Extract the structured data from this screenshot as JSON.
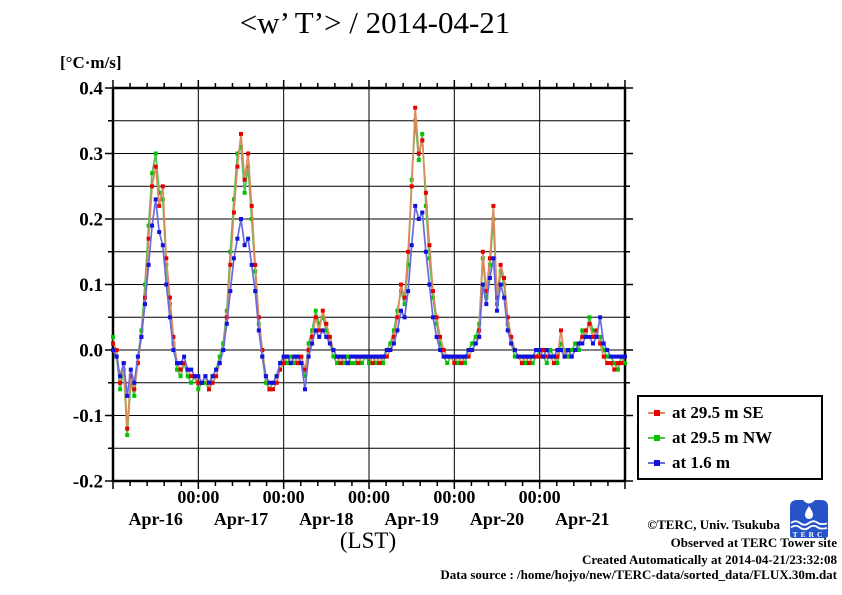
{
  "title": "<w’ T’> / 2014-04-21",
  "y_axis": {
    "unit_label": "[°C·m/s]",
    "ticks": [
      {
        "value": 0.4,
        "label": "0.4"
      },
      {
        "value": 0.3,
        "label": "0.3"
      },
      {
        "value": 0.2,
        "label": "0.2"
      },
      {
        "value": 0.1,
        "label": "0.1"
      },
      {
        "value": 0.0,
        "label": "0.0"
      },
      {
        "value": -0.1,
        "label": "-0.1"
      },
      {
        "value": -0.2,
        "label": "-0.2"
      }
    ]
  },
  "x_axis": {
    "midnight_label": "00:00",
    "day_labels": [
      "Apr-16",
      "Apr-17",
      "Apr-18",
      "Apr-19",
      "Apr-20",
      "Apr-21"
    ],
    "axis_label": "(LST)"
  },
  "legend": {
    "items": [
      {
        "label": "at 29.5 m SE",
        "marker_color": "#e60000",
        "line_color": "#dd8a5e"
      },
      {
        "label": "at 29.5 m NW",
        "marker_color": "#00c400",
        "line_color": "#52c052"
      },
      {
        "label": "at 1.6 m",
        "marker_color": "#1212e0",
        "line_color": "#6a6ade"
      }
    ]
  },
  "footer": {
    "lines": [
      "©TERC, Univ. Tsukuba",
      "Observed at TERC Tower site",
      "Created Automatically at 2014-04-21/23:32:08",
      "Data source : /home/hojyo/new/TERC-data/sorted_data/FLUX.30m.dat"
    ],
    "logo_text": "TERC",
    "logo_color": "#2653c8"
  },
  "chart_data": {
    "type": "line",
    "title": "<w’ T’> / 2014-04-21",
    "xlabel": "(LST)",
    "ylabel": "[°C·m/s]",
    "ylim": [
      -0.2,
      0.4
    ],
    "y_grid_step": 0.05,
    "y_major_step": 0.1,
    "x_unit": "hours from Apr-16 00:00 LST",
    "sample_interval_hours": 1,
    "hours_per_day": 24,
    "days": [
      "Apr-16",
      "Apr-17",
      "Apr-18",
      "Apr-19",
      "Apr-20",
      "Apr-21"
    ],
    "x_minor_tick_hours": 4.8,
    "grid": "on",
    "legend_position": "outside-right-bottom",
    "series": [
      {
        "name": "at 29.5 m SE",
        "marker_color": "#e60000",
        "line_color": "#dd8a5e",
        "values": [
          0.01,
          0.0,
          -0.05,
          -0.02,
          -0.12,
          -0.04,
          -0.06,
          -0.02,
          0.02,
          0.08,
          0.17,
          0.25,
          0.28,
          0.22,
          0.25,
          0.14,
          0.08,
          0.02,
          -0.02,
          -0.03,
          -0.02,
          -0.03,
          -0.04,
          -0.04,
          -0.05,
          -0.05,
          -0.04,
          -0.06,
          -0.05,
          -0.04,
          -0.02,
          0.0,
          0.05,
          0.13,
          0.21,
          0.28,
          0.33,
          0.26,
          0.3,
          0.22,
          0.13,
          0.05,
          0.0,
          -0.04,
          -0.06,
          -0.06,
          -0.05,
          -0.03,
          -0.02,
          -0.01,
          -0.02,
          -0.01,
          -0.02,
          -0.01,
          -0.03,
          0.0,
          0.02,
          0.05,
          0.03,
          0.06,
          0.04,
          0.02,
          0.0,
          -0.01,
          -0.02,
          -0.01,
          -0.02,
          -0.01,
          -0.01,
          -0.02,
          -0.01,
          -0.01,
          -0.01,
          -0.02,
          -0.01,
          -0.02,
          -0.01,
          -0.01,
          0.0,
          0.02,
          0.05,
          0.1,
          0.08,
          0.15,
          0.25,
          0.37,
          0.3,
          0.32,
          0.24,
          0.16,
          0.09,
          0.05,
          0.02,
          0.0,
          -0.01,
          -0.01,
          -0.02,
          -0.01,
          -0.02,
          -0.01,
          -0.01,
          0.0,
          0.01,
          0.03,
          0.15,
          0.09,
          0.14,
          0.22,
          0.08,
          0.13,
          0.11,
          0.05,
          0.02,
          0.0,
          -0.01,
          -0.02,
          -0.01,
          -0.02,
          -0.01,
          -0.01,
          -0.01,
          0.0,
          -0.01,
          -0.01,
          -0.02,
          -0.01,
          0.03,
          -0.01,
          0.0,
          -0.01,
          0.0,
          0.01,
          0.02,
          0.03,
          0.04,
          0.02,
          0.03,
          0.01,
          -0.01,
          -0.02,
          -0.02,
          -0.03,
          -0.02,
          -0.02,
          -0.01
        ]
      },
      {
        "name": "at 29.5 m NW",
        "marker_color": "#00c400",
        "line_color": "#52c052",
        "values": [
          0.02,
          -0.01,
          -0.06,
          -0.03,
          -0.13,
          -0.05,
          -0.07,
          -0.01,
          0.03,
          0.1,
          0.19,
          0.27,
          0.3,
          0.24,
          0.23,
          0.13,
          0.07,
          0.01,
          -0.03,
          -0.04,
          -0.02,
          -0.04,
          -0.05,
          -0.04,
          -0.06,
          -0.05,
          -0.05,
          -0.06,
          -0.04,
          -0.03,
          -0.01,
          0.01,
          0.06,
          0.15,
          0.23,
          0.3,
          0.31,
          0.24,
          0.28,
          0.2,
          0.12,
          0.04,
          -0.01,
          -0.05,
          -0.06,
          -0.05,
          -0.04,
          -0.02,
          -0.01,
          -0.02,
          -0.01,
          -0.02,
          -0.01,
          -0.02,
          -0.04,
          0.01,
          0.03,
          0.06,
          0.04,
          0.05,
          0.03,
          0.01,
          -0.01,
          -0.02,
          -0.01,
          -0.02,
          -0.01,
          -0.02,
          -0.02,
          -0.01,
          -0.02,
          -0.01,
          -0.02,
          -0.01,
          -0.02,
          -0.01,
          -0.02,
          0.0,
          0.01,
          0.03,
          0.06,
          0.09,
          0.07,
          0.13,
          0.26,
          0.35,
          0.29,
          0.33,
          0.22,
          0.14,
          0.08,
          0.04,
          0.01,
          -0.01,
          -0.02,
          -0.01,
          -0.01,
          -0.02,
          -0.01,
          -0.02,
          0.0,
          0.01,
          0.02,
          0.04,
          0.14,
          0.08,
          0.13,
          0.2,
          0.07,
          0.12,
          0.1,
          0.04,
          0.01,
          -0.01,
          -0.01,
          -0.01,
          -0.02,
          -0.01,
          -0.02,
          -0.01,
          0.0,
          -0.01,
          -0.02,
          0.0,
          -0.01,
          -0.02,
          0.01,
          0.0,
          -0.01,
          0.0,
          0.01,
          0.0,
          0.03,
          0.02,
          0.05,
          0.03,
          0.02,
          0.02,
          0.0,
          -0.01,
          -0.01,
          -0.02,
          -0.03,
          -0.01,
          -0.02
        ]
      },
      {
        "name": "at 1.6 m",
        "marker_color": "#1212e0",
        "line_color": "#6a6ade",
        "values": [
          0.0,
          -0.01,
          -0.04,
          -0.02,
          -0.07,
          -0.03,
          -0.05,
          -0.01,
          0.02,
          0.07,
          0.13,
          0.19,
          0.23,
          0.18,
          0.16,
          0.1,
          0.05,
          0.0,
          -0.02,
          -0.02,
          -0.01,
          -0.03,
          -0.03,
          -0.04,
          -0.04,
          -0.05,
          -0.04,
          -0.05,
          -0.04,
          -0.03,
          -0.02,
          0.0,
          0.04,
          0.09,
          0.14,
          0.17,
          0.2,
          0.16,
          0.17,
          0.13,
          0.09,
          0.03,
          -0.01,
          -0.04,
          -0.05,
          -0.05,
          -0.04,
          -0.02,
          -0.01,
          -0.01,
          -0.02,
          -0.01,
          -0.01,
          -0.02,
          -0.06,
          -0.01,
          0.01,
          0.03,
          0.02,
          0.03,
          0.02,
          0.01,
          0.0,
          -0.01,
          -0.01,
          -0.01,
          -0.02,
          -0.01,
          -0.01,
          -0.01,
          -0.01,
          -0.01,
          -0.01,
          -0.01,
          -0.01,
          -0.01,
          -0.01,
          0.0,
          0.0,
          0.01,
          0.03,
          0.06,
          0.05,
          0.09,
          0.16,
          0.22,
          0.2,
          0.21,
          0.15,
          0.1,
          0.05,
          0.02,
          0.0,
          -0.01,
          -0.01,
          -0.01,
          -0.01,
          -0.01,
          -0.01,
          -0.01,
          0.0,
          0.0,
          0.01,
          0.02,
          0.1,
          0.07,
          0.11,
          0.14,
          0.06,
          0.1,
          0.08,
          0.03,
          0.01,
          0.0,
          -0.01,
          -0.01,
          -0.01,
          -0.01,
          -0.01,
          0.0,
          0.0,
          -0.01,
          0.0,
          -0.01,
          -0.01,
          0.0,
          0.0,
          -0.01,
          0.0,
          -0.01,
          0.0,
          0.01,
          0.01,
          0.02,
          0.02,
          0.01,
          0.02,
          0.05,
          0.01,
          0.0,
          -0.01,
          -0.01,
          -0.01,
          -0.01,
          -0.01
        ]
      }
    ]
  }
}
